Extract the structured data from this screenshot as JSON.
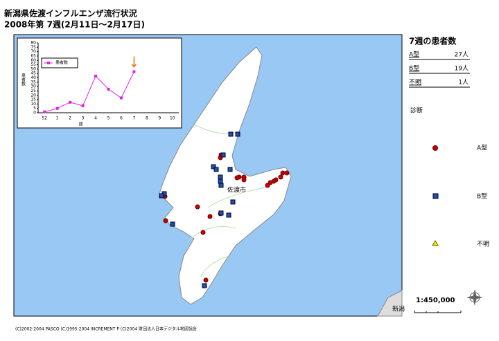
{
  "header": {
    "title": "新潟県佐渡インフルエンザ流行状況",
    "subtitle": "2008年第 7週(2月11日～2月17日)"
  },
  "panel": {
    "title": "7週の患者数",
    "rows": [
      [
        "A型",
        "27人"
      ],
      [
        "B型",
        "19人"
      ],
      [
        "不明",
        "1人"
      ]
    ],
    "legend_title": "診断",
    "legend": [
      "A型",
      "B型",
      "不明"
    ],
    "scale": "1:450,000"
  },
  "map_labels": [
    "佐渡市",
    "新潟"
  ],
  "footer": "(C)2002-2004 PASCO (C)1995-2004 INCREMENT P (C)2004 財団法人日本デジタル地図協会",
  "chart_data": {
    "type": "line",
    "categories": [
      "52",
      "1",
      "2",
      "3",
      "4",
      "5",
      "6",
      "7",
      "8",
      "9",
      "10"
    ],
    "series": [
      {
        "name": "患者数",
        "color": "#e020e0",
        "values": [
          1,
          5,
          12,
          8,
          42,
          27,
          17,
          47,
          null,
          null,
          null
        ]
      }
    ],
    "ylim": [
      0,
      80
    ],
    "yticks": [
      0,
      5,
      10,
      15,
      20,
      25,
      30,
      35,
      40,
      45,
      50,
      55,
      60,
      65,
      70,
      75,
      80
    ],
    "ylabel": "患者数",
    "xlabel": "週",
    "legend": "upper left"
  }
}
